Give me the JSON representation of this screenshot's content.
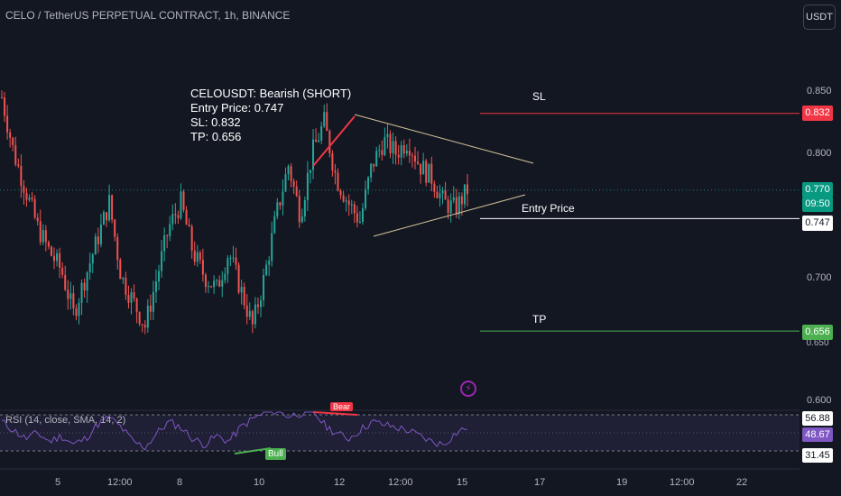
{
  "header": {
    "title": "CELO / TetherUS PERPETUAL CONTRACT, 1h, BINANCE",
    "currency_button": "USDT"
  },
  "note": {
    "line1": "CELOUSDT: Bearish (SHORT)",
    "line2": "Entry Price: 0.747",
    "line3": "SL: 0.832",
    "line4": "TP: 0.656"
  },
  "levels": {
    "sl_label": "SL",
    "entry_label": "Entry Price",
    "tp_label": "TP"
  },
  "price_tags": {
    "sl": "0.832",
    "last": "0.770",
    "countdown": "09:50",
    "entry": "0.747",
    "tp": "0.656",
    "tp_partial": "0.650"
  },
  "colors": {
    "background": "#131722",
    "up": "#26a69a",
    "down": "#ef5350",
    "sl_line": "#f23645",
    "tp_line": "#4caf50",
    "entry_line": "#ffffff",
    "triangle": "#d6c69a",
    "rsi": "#7e57c2"
  },
  "rsi": {
    "title": "RSI (14, close, SMA, 14, 2)",
    "upper": "56.88",
    "value": "48.67",
    "lower": "31.45",
    "bull_label": "Bull",
    "bear_label": "Bear"
  },
  "chart_data": {
    "type": "candlestick",
    "title": "CELO / TetherUS PERPETUAL CONTRACT, 1h, BINANCE",
    "y_ticks": [
      "0.850",
      "0.800",
      "0.700",
      "0.600"
    ],
    "x_ticks": [
      "5",
      "12:00",
      "8",
      "10",
      "12",
      "12:00",
      "15",
      "17",
      "19",
      "12:00",
      "22"
    ],
    "ylim": [
      0.598,
      0.865
    ],
    "levels": {
      "stop_loss": 0.832,
      "entry": 0.747,
      "take_profit": 0.656,
      "last_price": 0.77
    },
    "approximate_close_path": [
      0.845,
      0.8,
      0.77,
      0.74,
      0.72,
      0.705,
      0.67,
      0.7,
      0.73,
      0.76,
      0.7,
      0.68,
      0.66,
      0.7,
      0.74,
      0.76,
      0.72,
      0.7,
      0.69,
      0.72,
      0.69,
      0.66,
      0.7,
      0.75,
      0.79,
      0.75,
      0.8,
      0.825,
      0.78,
      0.76,
      0.745,
      0.79,
      0.81,
      0.8,
      0.81,
      0.79,
      0.78,
      0.76,
      0.755,
      0.77
    ],
    "rsi_series_approx": [
      52,
      46,
      40,
      44,
      38,
      42,
      36,
      40,
      50,
      55,
      48,
      38,
      34,
      44,
      52,
      48,
      40,
      36,
      42,
      38,
      48,
      54,
      58,
      60,
      56,
      58,
      60,
      50,
      44,
      40,
      46,
      52,
      50,
      48,
      46,
      42,
      38,
      36,
      44,
      48
    ]
  }
}
